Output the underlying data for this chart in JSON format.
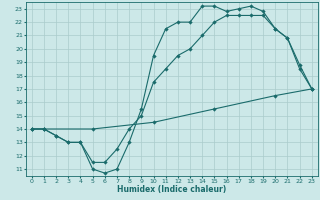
{
  "xlabel": "Humidex (Indice chaleur)",
  "xlim": [
    -0.5,
    23.5
  ],
  "ylim": [
    10.5,
    23.5
  ],
  "xticks": [
    0,
    1,
    2,
    3,
    4,
    5,
    6,
    7,
    8,
    9,
    10,
    11,
    12,
    13,
    14,
    15,
    16,
    17,
    18,
    19,
    20,
    21,
    22,
    23
  ],
  "yticks": [
    11,
    12,
    13,
    14,
    15,
    16,
    17,
    18,
    19,
    20,
    21,
    22,
    23
  ],
  "bg_color": "#cce8e8",
  "grid_color": "#aacccc",
  "line_color": "#1a6b6b",
  "line1_x": [
    0,
    1,
    2,
    3,
    4,
    5,
    6,
    7,
    8,
    9,
    10,
    11,
    12,
    13,
    14,
    15,
    16,
    17,
    18,
    19,
    20,
    21,
    22,
    23
  ],
  "line1_y": [
    14,
    14,
    13.5,
    13,
    13,
    11,
    10.7,
    11,
    13,
    15.5,
    19.5,
    21.5,
    22,
    22,
    23.2,
    23.2,
    22.8,
    23,
    23.2,
    22.8,
    21.5,
    20.8,
    18.5,
    17
  ],
  "line2_x": [
    0,
    1,
    2,
    3,
    4,
    5,
    6,
    7,
    8,
    9,
    10,
    11,
    12,
    13,
    14,
    15,
    16,
    17,
    18,
    19,
    20,
    21,
    22,
    23
  ],
  "line2_y": [
    14,
    14,
    13.5,
    13,
    13,
    11.5,
    11.5,
    12.5,
    14,
    15,
    17.5,
    18.5,
    19.5,
    20,
    21,
    22,
    22.5,
    22.5,
    22.5,
    22.5,
    21.5,
    20.8,
    18.8,
    17
  ],
  "line3_x": [
    0,
    1,
    5,
    10,
    15,
    20,
    23
  ],
  "line3_y": [
    14,
    14,
    14,
    14.5,
    15.5,
    16.5,
    17
  ]
}
